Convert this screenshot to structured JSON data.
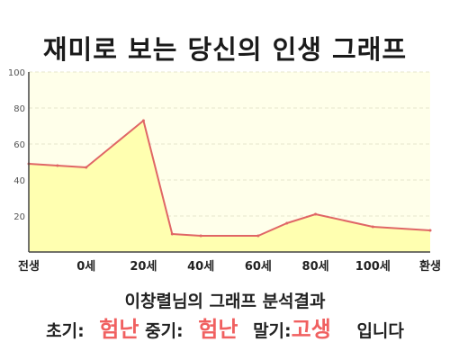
{
  "title": "재미로 보는 당신의 인생 그래프",
  "subtitle": "이창렬님의 그래프 분석결과",
  "result": {
    "early_label": "초기:",
    "early_value": "험난",
    "mid_label": "중기:",
    "mid_value": "험난",
    "late_label": "말기:",
    "late_value": "고생",
    "suffix": "입니다"
  },
  "colors": {
    "line": "#e06666",
    "fill": "#ffffb0",
    "plot_bg": "#ffffea",
    "highlight": "#f06060"
  },
  "chart_data": {
    "type": "area",
    "title": "",
    "xlabel": "",
    "ylabel": "",
    "ylim": [
      0,
      100
    ],
    "yticks": [
      20,
      40,
      60,
      80,
      100
    ],
    "xticks": [
      "전생",
      "0세",
      "20세",
      "40세",
      "60세",
      "80세",
      "100세",
      "환생"
    ],
    "grid": true,
    "series": [
      {
        "x": [
          -20,
          -10,
          0,
          20,
          30,
          40,
          60,
          70,
          80,
          100,
          120
        ],
        "y": [
          49,
          48,
          47,
          73,
          10,
          9,
          9,
          16,
          21,
          14,
          12
        ]
      }
    ]
  }
}
